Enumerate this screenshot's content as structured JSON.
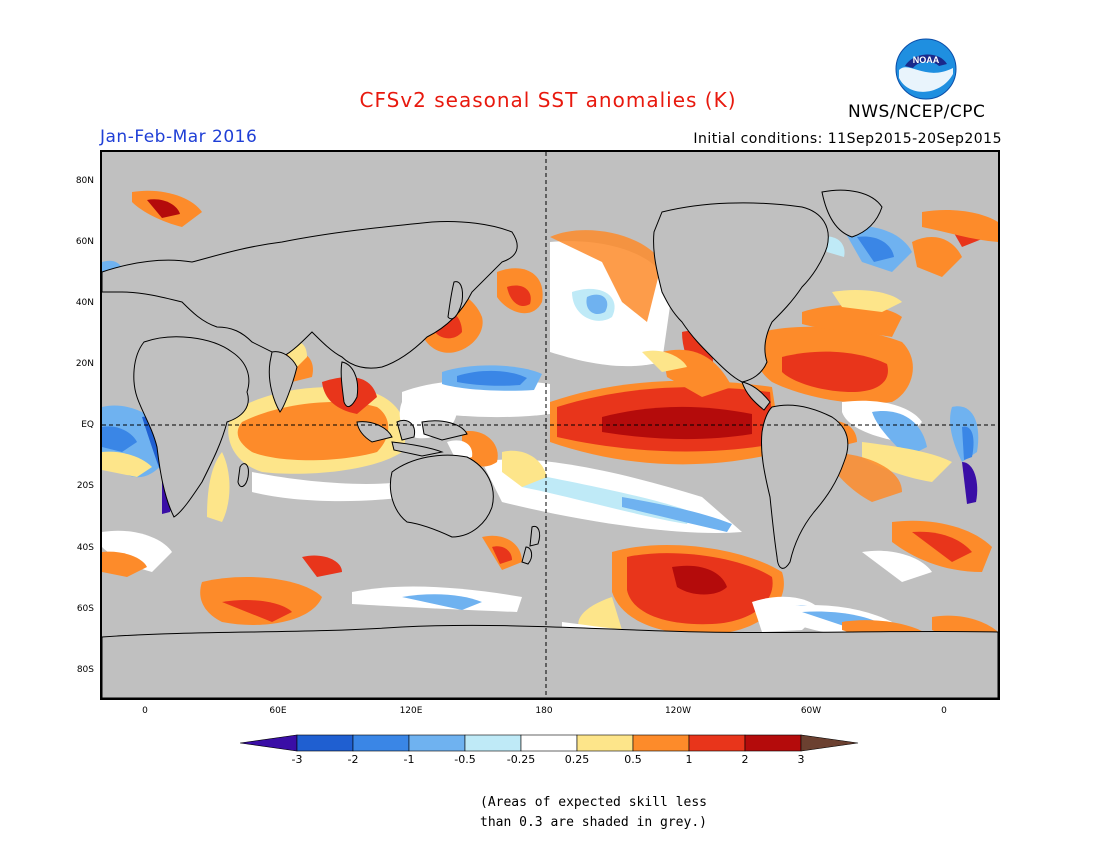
{
  "title": "CFSv2 seasonal SST anomalies (K)",
  "season": "Jan-Feb-Mar 2016",
  "agency": "NWS/NCEP/CPC",
  "logo_text": "NOAA",
  "initial_conditions": "Initial conditions: 11Sep2015-20Sep2015",
  "lat_labels": [
    "80N",
    "60N",
    "40N",
    "20N",
    "EQ",
    "20S",
    "40S",
    "60S",
    "80S"
  ],
  "lon_labels": [
    "0",
    "60E",
    "120E",
    "180",
    "120W",
    "60W",
    "0"
  ],
  "colorbar": {
    "ticks": [
      "-3",
      "-2",
      "-1",
      "-0.5",
      "-0.25",
      "0.25",
      "0.5",
      "1",
      "2",
      "3"
    ],
    "colors": [
      "#3a0ea6",
      "#1f5fd1",
      "#3a86e6",
      "#6fb2f0",
      "#bfeaf7",
      "#ffffff",
      "#fde58a",
      "#fd8b2a",
      "#e8351b",
      "#b40b0b",
      "#6b4030"
    ]
  },
  "note_line1": "(Areas of expected skill less",
  "note_line2": "than 0.3 are shaded in grey.)",
  "colors": {
    "grey": "#c0c0c0",
    "title": "#e8190e",
    "season": "#1f3fd6"
  }
}
